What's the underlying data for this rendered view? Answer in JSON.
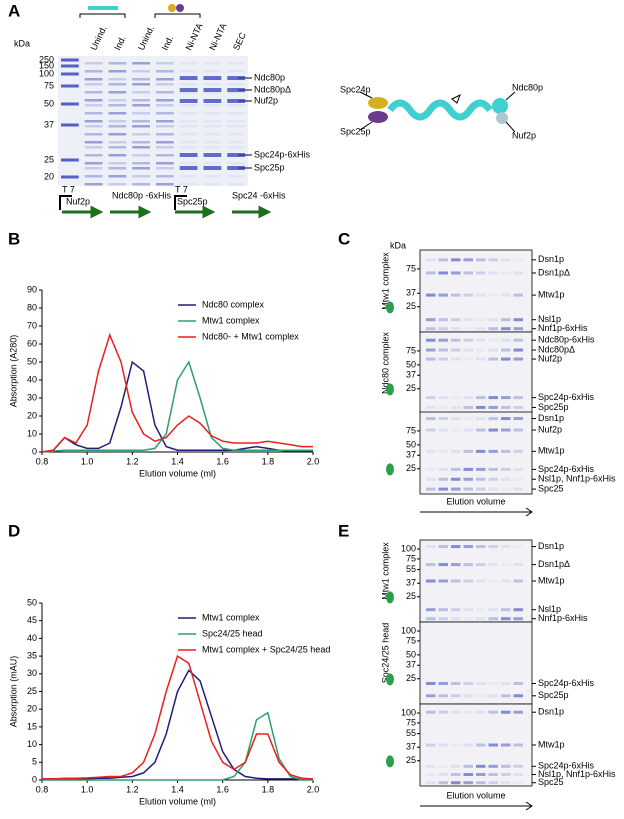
{
  "panels": [
    "A",
    "B",
    "C",
    "D",
    "E"
  ],
  "gel_a": {
    "unit": "kDa",
    "lanes": [
      "Unind.",
      "Ind.",
      "Unind.",
      "Ind.",
      "Ni-NTA",
      "Ni-NTA",
      "SEC"
    ],
    "markers": [
      250,
      150,
      100,
      75,
      50,
      37,
      25,
      20
    ],
    "bands": [
      "Ndc80p",
      "Ndc80pΔ",
      "Nuf2p",
      "Spc24p-6xHis",
      "Spc25p"
    ],
    "constructs": [
      "T 7",
      "Nuf2p",
      "Ndc80p -6xHis",
      "T 7",
      "Spc25p",
      "Spc24 -6xHis"
    ]
  },
  "diagram_a": {
    "labels": [
      "Spc24p",
      "Spc25p",
      "Ndc80p",
      "Nuf2p"
    ]
  },
  "gel_c": {
    "unit": "kDa",
    "axis": "Elution volume",
    "sections": [
      {
        "title": "Mtw1 complex",
        "markers": [
          75,
          37,
          25
        ],
        "bands": [
          "Dsn1p",
          "Dsn1pΔ",
          "Mtw1p",
          "Nsl1p",
          "Nnf1p-6xHis"
        ]
      },
      {
        "title": "Ndc80 complex",
        "markers": [
          75,
          50,
          37,
          25
        ],
        "bands": [
          "Ndc80p-6xHis",
          "Ndc80pΔ",
          "Nuf2p",
          "Spc24p-6xHis",
          "Spc25p"
        ]
      },
      {
        "markers": [
          75,
          50,
          37,
          25
        ],
        "bands": [
          "Dsn1p",
          "Nuf2p",
          "Mtw1p",
          "Spc24p-6xHis",
          "Nsl1p, Nnf1p-6xHis",
          "Spc25"
        ]
      }
    ]
  },
  "gel_e": {
    "axis": "Elution volume",
    "sections": [
      {
        "title": "Mtw1 complex",
        "markers": [
          100,
          75,
          55,
          37,
          25
        ],
        "bands": [
          "Dsn1p",
          "Dsn1pΔ",
          "Mtw1p",
          "Nsl1p",
          "Nnf1p-6xHis"
        ]
      },
      {
        "title": "Spc24/25 head",
        "markers": [
          100,
          75,
          50,
          37,
          25
        ],
        "bands": [
          "Spc24p-6xHis",
          "Spc25p"
        ]
      },
      {
        "markers": [
          100,
          75,
          55,
          37,
          25
        ],
        "bands": [
          "Dsn1p",
          "Mtw1p",
          "Spc24p-6xHis",
          "Nsl1p, Nnf1p-6xHis",
          "Spc25"
        ]
      }
    ]
  },
  "chart_data": [
    {
      "type": "line",
      "x_label": "Elution volume (ml)",
      "y_label": "Absorption (A280)",
      "x": [
        0.8,
        0.85,
        0.9,
        0.95,
        1.0,
        1.05,
        1.1,
        1.15,
        1.2,
        1.25,
        1.3,
        1.35,
        1.4,
        1.45,
        1.5,
        1.55,
        1.6,
        1.65,
        1.7,
        1.75,
        1.8,
        1.85,
        1.9,
        1.95,
        2.0
      ],
      "xlim": [
        0.8,
        2.0
      ],
      "xticks": [
        0.8,
        {
          "value": 1,
          "label": "1.0"
        },
        1.2,
        1.4,
        1.6,
        1.8,
        {
          "value": 2,
          "label": "2.0"
        }
      ],
      "ylim": [
        0,
        90
      ],
      "yticks": [
        0,
        10,
        20,
        30,
        40,
        50,
        60,
        70,
        80,
        90
      ],
      "legend": "upper right",
      "series": [
        {
          "name": "Ndc80 complex",
          "color": "#1f1f7a",
          "values": [
            0,
            1,
            8,
            4,
            2,
            2,
            5,
            25,
            50,
            45,
            15,
            3,
            1,
            1,
            1,
            1,
            1,
            1,
            2,
            3,
            2,
            1,
            0.5,
            0.5,
            0.5
          ]
        },
        {
          "name": "Mtw1 complex",
          "color": "#2e9e6e",
          "values": [
            0,
            0.5,
            1,
            1,
            1,
            1,
            1,
            1,
            1,
            1,
            2,
            10,
            40,
            50,
            30,
            8,
            2,
            1,
            1,
            1,
            1,
            1,
            1,
            1,
            1
          ]
        },
        {
          "name": "Ndc80- + Mtw1 complex",
          "color": "#e8201e",
          "values": [
            0,
            1,
            8,
            5,
            15,
            45,
            65,
            50,
            22,
            10,
            6,
            8,
            15,
            20,
            16,
            9,
            6,
            5,
            5,
            5,
            6,
            5,
            4,
            3,
            3
          ]
        }
      ]
    },
    {
      "type": "line",
      "x_label": "Elution volume (ml)",
      "y_label": "Absorption (mAU)",
      "x": [
        0.8,
        0.85,
        0.9,
        0.95,
        1.0,
        1.05,
        1.1,
        1.15,
        1.2,
        1.25,
        1.3,
        1.35,
        1.4,
        1.45,
        1.5,
        1.55,
        1.6,
        1.65,
        1.7,
        1.75,
        1.8,
        1.85,
        1.9,
        1.95,
        2.0
      ],
      "xlim": [
        0.8,
        2.0
      ],
      "xticks": [
        0.8,
        {
          "value": 1,
          "label": "1.0"
        },
        1.2,
        1.4,
        1.6,
        1.8,
        {
          "value": 2,
          "label": "2.0"
        }
      ],
      "ylim": [
        0,
        50
      ],
      "yticks": [
        0,
        5,
        10,
        15,
        20,
        25,
        30,
        35,
        40,
        45,
        50
      ],
      "legend": "upper right",
      "series": [
        {
          "name": "Mtw1 complex",
          "color": "#1f1f7a",
          "values": [
            0.3,
            0.3,
            0.3,
            0.3,
            0.3,
            0.5,
            0.5,
            0.8,
            1,
            2,
            5,
            13,
            25,
            31,
            28,
            18,
            8,
            3,
            1,
            0.5,
            0.3,
            0.3,
            0.3,
            0.3,
            0.3
          ]
        },
        {
          "name": "Spc24/25 head",
          "color": "#2e9e6e",
          "values": [
            0,
            0,
            0,
            0,
            0,
            0,
            0,
            0,
            0,
            0,
            0,
            0,
            0,
            0,
            0,
            0,
            0,
            1,
            5,
            17,
            19,
            6,
            1,
            0,
            0
          ]
        },
        {
          "name": "Mtw1 complex + Spc24/25 head",
          "color": "#e8201e",
          "values": [
            0.3,
            0.3,
            0.5,
            0.5,
            0.6,
            0.8,
            1,
            1,
            2,
            5,
            13,
            25,
            35,
            33,
            22,
            11,
            5,
            3,
            5,
            13,
            13,
            5,
            1.5,
            0.5,
            0.3
          ]
        }
      ]
    }
  ]
}
